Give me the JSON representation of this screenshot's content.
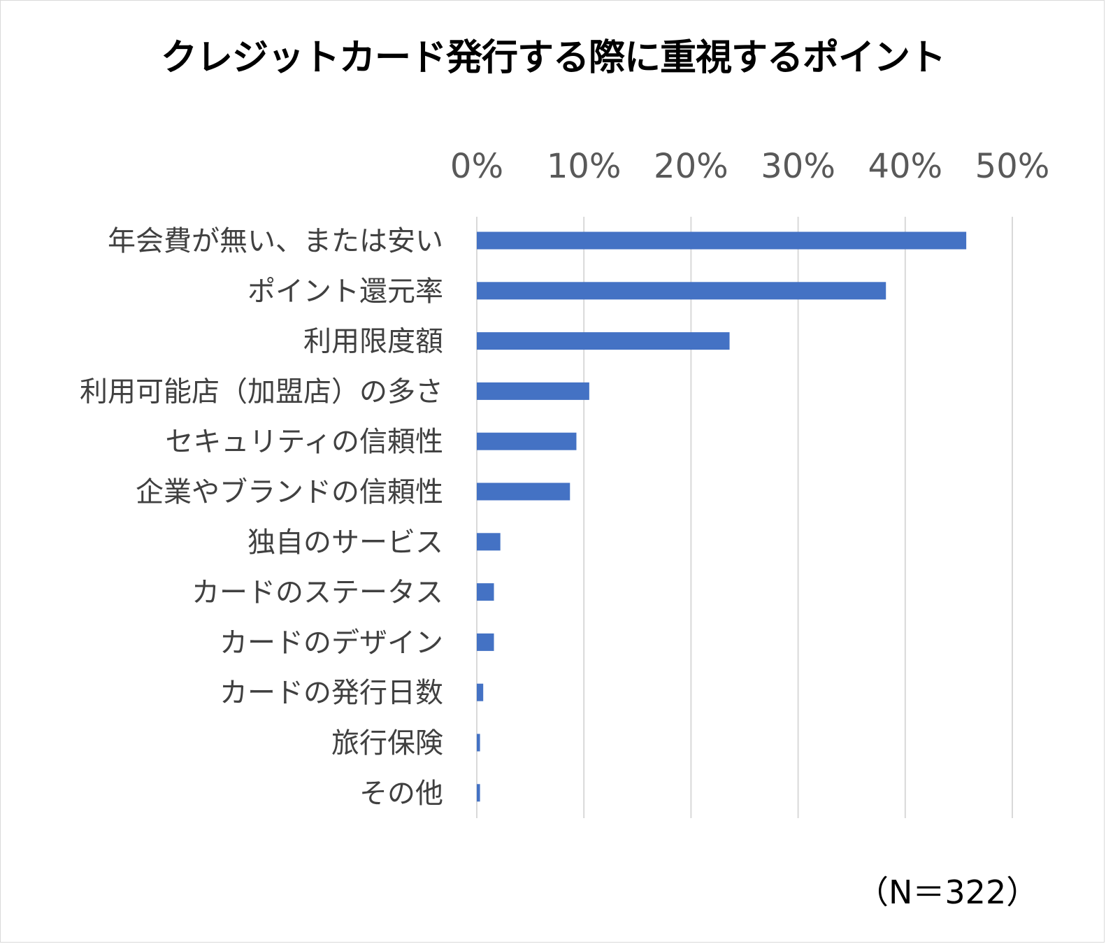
{
  "chart_data": {
    "type": "bar",
    "orientation": "horizontal",
    "title": "クレジットカード発行する際に重視するポイント",
    "categories": [
      "年会費が無い、または安い",
      "ポイント還元率",
      "利用限度額",
      "利用可能店（加盟店）の多さ",
      "セキュリティの信頼性",
      "企業やブランドの信頼性",
      "独自のサービス",
      "カードのステータス",
      "カードのデザイン",
      "カードの発行日数",
      "旅行保険",
      "その他"
    ],
    "values": [
      45.7,
      38.2,
      23.6,
      10.5,
      9.3,
      8.7,
      2.2,
      1.6,
      1.6,
      0.6,
      0.3,
      0.3
    ],
    "unit": "%",
    "xlim": [
      0,
      50
    ],
    "ticks": [
      0,
      10,
      20,
      30,
      40,
      50
    ],
    "tick_labels": [
      "0%",
      "10%",
      "20%",
      "30%",
      "40%",
      "50%"
    ],
    "x_axis_position": "top",
    "grid": true,
    "legend": "none",
    "bar_color": "#4472C4",
    "grid_color": "#D9D9D9",
    "note": "（N＝322）"
  }
}
